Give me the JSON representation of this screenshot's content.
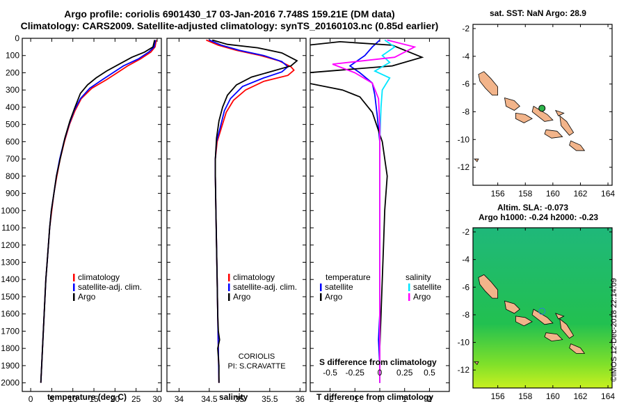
{
  "header": {
    "line1": "Argo profile: coriolis 6901430_17 03-Jan-2016 7.748S 159.21E (DM data)",
    "line2": "Climatology: CARS2009. Satellite-adjusted climatology: synTS_20160103.nc (0.85d earlier)"
  },
  "stamp": "©IMOS 12-Dec-2018 22:14:09",
  "colors": {
    "climatology": "#ff0000",
    "satellite": "#0000ff",
    "argo": "#000000",
    "sat_salinity": "#00e5ff",
    "clim_salinity": "#ff00ff"
  },
  "chart_data": [
    {
      "type": "line",
      "id": "temperature",
      "xlabel": "temperature (deg C)",
      "ylabel": "",
      "xlim": [
        -2,
        31
      ],
      "ylim": [
        2050,
        0
      ],
      "xticks": [
        0,
        5,
        10,
        15,
        20,
        25,
        30
      ],
      "yticks": [
        0,
        100,
        200,
        300,
        400,
        500,
        600,
        700,
        800,
        900,
        1000,
        1100,
        1200,
        1300,
        1400,
        1500,
        1600,
        1700,
        1800,
        1900,
        2000
      ],
      "legend": [
        "climatology",
        "satellite-adj. clim.",
        "Argo"
      ],
      "series": [
        {
          "name": "climatology",
          "color": "#ff0000",
          "points": [
            [
              29.8,
              10
            ],
            [
              29.5,
              50
            ],
            [
              28.5,
              80
            ],
            [
              26,
              120
            ],
            [
              23,
              160
            ],
            [
              20.5,
              200
            ],
            [
              18,
              240
            ],
            [
              14.5,
              290
            ],
            [
              12,
              350
            ],
            [
              10.5,
              420
            ],
            [
              9.2,
              500
            ],
            [
              8,
              600
            ],
            [
              7,
              700
            ],
            [
              6.2,
              800
            ],
            [
              5.5,
              900
            ],
            [
              5,
              1000
            ],
            [
              4.5,
              1100
            ],
            [
              4.2,
              1200
            ],
            [
              3.9,
              1300
            ],
            [
              3.6,
              1400
            ],
            [
              3.4,
              1500
            ],
            [
              3.2,
              1600
            ],
            [
              3,
              1700
            ],
            [
              2.8,
              1800
            ],
            [
              2.6,
              1900
            ],
            [
              2.4,
              2000
            ]
          ]
        },
        {
          "name": "satellite-adj. clim.",
          "color": "#0000ff",
          "points": [
            [
              29.6,
              10
            ],
            [
              29.3,
              50
            ],
            [
              28,
              80
            ],
            [
              25.5,
              120
            ],
            [
              22,
              160
            ],
            [
              19.5,
              200
            ],
            [
              17,
              240
            ],
            [
              14,
              290
            ],
            [
              11.8,
              350
            ],
            [
              10.3,
              420
            ],
            [
              9.1,
              500
            ],
            [
              7.9,
              600
            ],
            [
              6.9,
              700
            ],
            [
              6.1,
              800
            ],
            [
              5.5,
              900
            ],
            [
              4.9,
              1000
            ],
            [
              4.5,
              1100
            ],
            [
              4.2,
              1200
            ],
            [
              3.9,
              1300
            ],
            [
              3.6,
              1400
            ],
            [
              3.4,
              1500
            ],
            [
              3.2,
              1600
            ],
            [
              3,
              1700
            ],
            [
              2.8,
              1800
            ],
            [
              2.6,
              1900
            ],
            [
              2.4,
              2000
            ]
          ]
        },
        {
          "name": "Argo",
          "color": "#000000",
          "points": [
            [
              29.4,
              10
            ],
            [
              29,
              50
            ],
            [
              27,
              80
            ],
            [
              24,
              110
            ],
            [
              21,
              150
            ],
            [
              18,
              190
            ],
            [
              15.5,
              230
            ],
            [
              13.5,
              270
            ],
            [
              11.8,
              320
            ],
            [
              10.5,
              400
            ],
            [
              9.3,
              480
            ],
            [
              8.1,
              580
            ],
            [
              7,
              700
            ],
            [
              6.1,
              800
            ],
            [
              5.5,
              900
            ],
            [
              4.9,
              1000
            ],
            [
              4.5,
              1100
            ],
            [
              4.2,
              1200
            ],
            [
              3.9,
              1300
            ],
            [
              3.6,
              1400
            ],
            [
              3.4,
              1500
            ],
            [
              3.2,
              1600
            ],
            [
              3,
              1700
            ],
            [
              2.8,
              1800
            ],
            [
              2.6,
              1900
            ],
            [
              2.4,
              2000
            ]
          ]
        }
      ]
    },
    {
      "type": "line",
      "id": "salinity",
      "xlabel": "salinity",
      "ylabel": "",
      "xlim": [
        33.8,
        36.1
      ],
      "ylim": [
        2050,
        0
      ],
      "xticks": [
        34,
        34.5,
        35,
        35.5,
        36
      ],
      "xticklabels": [
        "34",
        "34.5",
        "35",
        "35.5",
        "36"
      ],
      "legend": [
        "climatology",
        "satellite-adj. clim.",
        "Argo"
      ],
      "annotation": [
        "CORIOLIS",
        "PI: S.CRAVATTE"
      ],
      "series": [
        {
          "name": "climatology",
          "color": "#ff0000",
          "points": [
            [
              34.45,
              10
            ],
            [
              34.65,
              40
            ],
            [
              34.95,
              70
            ],
            [
              35.35,
              100
            ],
            [
              35.65,
              130
            ],
            [
              35.85,
              165
            ],
            [
              35.9,
              185
            ],
            [
              35.8,
              215
            ],
            [
              35.4,
              250
            ],
            [
              35.1,
              300
            ],
            [
              34.9,
              360
            ],
            [
              34.78,
              430
            ],
            [
              34.7,
              520
            ],
            [
              34.63,
              600
            ],
            [
              34.6,
              700
            ],
            [
              34.6,
              800
            ],
            [
              34.61,
              1000
            ],
            [
              34.62,
              1200
            ],
            [
              34.63,
              1400
            ],
            [
              34.64,
              1600
            ],
            [
              34.65,
              1800
            ],
            [
              34.66,
              2000
            ]
          ]
        },
        {
          "name": "satellite-adj. clim.",
          "color": "#0000ff",
          "points": [
            [
              34.5,
              10
            ],
            [
              34.7,
              40
            ],
            [
              35.0,
              70
            ],
            [
              35.4,
              100
            ],
            [
              35.7,
              135
            ],
            [
              35.8,
              165
            ],
            [
              35.7,
              195
            ],
            [
              35.4,
              230
            ],
            [
              35.05,
              280
            ],
            [
              34.85,
              350
            ],
            [
              34.75,
              420
            ],
            [
              34.68,
              520
            ],
            [
              34.62,
              600
            ],
            [
              34.6,
              700
            ],
            [
              34.6,
              800
            ],
            [
              34.61,
              1000
            ],
            [
              34.62,
              1200
            ],
            [
              34.63,
              1400
            ],
            [
              34.64,
              1600
            ],
            [
              34.65,
              1800
            ],
            [
              34.66,
              2000
            ]
          ]
        },
        {
          "name": "Argo",
          "color": "#000000",
          "points": [
            [
              34.55,
              10
            ],
            [
              34.8,
              35
            ],
            [
              35.3,
              55
            ],
            [
              35.7,
              85
            ],
            [
              35.95,
              130
            ],
            [
              35.85,
              160
            ],
            [
              35.55,
              190
            ],
            [
              35.2,
              225
            ],
            [
              34.95,
              270
            ],
            [
              34.8,
              330
            ],
            [
              34.72,
              400
            ],
            [
              34.66,
              480
            ],
            [
              34.62,
              580
            ],
            [
              34.6,
              700
            ],
            [
              34.6,
              800
            ],
            [
              34.61,
              1000
            ],
            [
              34.62,
              1200
            ],
            [
              34.63,
              1400
            ],
            [
              34.64,
              1600
            ],
            [
              34.65,
              1700
            ],
            [
              34.67,
              1750
            ],
            [
              34.64,
              1800
            ],
            [
              34.66,
              1900
            ],
            [
              34.66,
              2000
            ]
          ]
        }
      ]
    },
    {
      "type": "line",
      "id": "difference",
      "xlabel": "T difference from climatology",
      "xlabel2": "S difference from climatology",
      "ylabel": "",
      "xlim": [
        -2.8,
        2.8
      ],
      "ylim": [
        2050,
        0
      ],
      "xticks": [
        -2,
        -1,
        0,
        1,
        2
      ],
      "xticks2": [
        -2,
        -1,
        0,
        1,
        2
      ],
      "xticklabels2": [
        "-0.5",
        "-0.25",
        "0",
        "0.25",
        "0.5"
      ],
      "legend_left_title": "temperature",
      "legend_right_title": "salinity",
      "legend": [
        "satellite",
        "Argo",
        "satellite",
        "Argo"
      ],
      "series": [
        {
          "name": "satellite",
          "color": "#0000ff",
          "points": [
            [
              0,
              10
            ],
            [
              -0.3,
              50
            ],
            [
              -0.6,
              100
            ],
            [
              -1.2,
              160
            ],
            [
              -0.8,
              200
            ],
            [
              -0.3,
              260
            ],
            [
              -0.2,
              330
            ],
            [
              -0.1,
              450
            ],
            [
              0,
              600
            ],
            [
              0,
              800
            ],
            [
              0,
              1000
            ],
            [
              0,
              1200
            ],
            [
              0,
              1400
            ],
            [
              0,
              1600
            ],
            [
              -0.05,
              1750
            ],
            [
              0,
              1900
            ],
            [
              0,
              2000
            ]
          ]
        },
        {
          "name": "Argo",
          "color": "#000000",
          "points": [
            [
              -2.9,
              40
            ],
            [
              -1.6,
              20
            ],
            [
              0.5,
              40
            ],
            [
              1.7,
              110
            ],
            [
              0.5,
              160
            ],
            [
              -2.9,
              200
            ],
            [
              -2.9,
              260
            ],
            [
              -1.5,
              300
            ],
            [
              -0.8,
              340
            ],
            [
              -0.3,
              430
            ],
            [
              0.1,
              600
            ],
            [
              0.3,
              800
            ],
            [
              0.2,
              1000
            ],
            [
              0.15,
              1200
            ],
            [
              0.1,
              1400
            ],
            [
              0.05,
              1600
            ],
            [
              0,
              1800
            ],
            [
              0,
              2000
            ]
          ]
        },
        {
          "name": "satellite",
          "color": "#00e5ff",
          "points": [
            [
              0.2,
              10
            ],
            [
              0.6,
              50
            ],
            [
              0.1,
              100
            ],
            [
              0.4,
              140
            ],
            [
              -0.2,
              190
            ],
            [
              0.4,
              230
            ],
            [
              0.1,
              300
            ],
            [
              0.05,
              400
            ],
            [
              0,
              600
            ],
            [
              0,
              800
            ],
            [
              0,
              1000
            ],
            [
              0,
              1200
            ],
            [
              0,
              1400
            ],
            [
              0,
              1600
            ],
            [
              0,
              1800
            ],
            [
              0,
              2000
            ]
          ]
        },
        {
          "name": "Argo",
          "color": "#ff00ff",
          "points": [
            [
              0.3,
              10
            ],
            [
              1.4,
              50
            ],
            [
              0.6,
              110
            ],
            [
              -1.9,
              150
            ],
            [
              -1.0,
              200
            ],
            [
              -0.3,
              260
            ],
            [
              -0.05,
              350
            ],
            [
              0,
              500
            ],
            [
              0,
              800
            ],
            [
              0,
              1000
            ],
            [
              0,
              1200
            ],
            [
              0,
              1400
            ],
            [
              0,
              1600
            ],
            [
              0,
              1800
            ],
            [
              0,
              2000
            ]
          ]
        }
      ]
    },
    {
      "type": "scatter",
      "id": "sst-map",
      "title": "sat. SST: NaN Argo: 28.9",
      "xlim": [
        154.2,
        164.3
      ],
      "ylim": [
        -13.3,
        -1.7
      ],
      "xticks": [
        156,
        158,
        160,
        162,
        164
      ],
      "yticks": [
        -2,
        -4,
        -6,
        -8,
        -10,
        -12
      ],
      "points": [
        {
          "x": 159.21,
          "y": -7.748,
          "value": 28.9
        }
      ]
    },
    {
      "type": "heatmap",
      "id": "sla-map",
      "title1": "Altim. SLA: -0.073",
      "title2": "Argo h1000: -0.24 h2000: -0.23",
      "xlim": [
        154.2,
        164.3
      ],
      "ylim": [
        -13.3,
        -1.7
      ],
      "xticks": [
        156,
        158,
        160,
        162,
        164
      ],
      "yticks": [
        -2,
        -4,
        -6,
        -8,
        -10,
        -12
      ],
      "points": [
        {
          "x": 159.21,
          "y": -7.748
        }
      ]
    }
  ],
  "legend_main": {
    "climatology": "climatology",
    "satellite": "satellite-adj. clim.",
    "argo": "Argo"
  },
  "legend_diff": {
    "temperature": "temperature",
    "salinity": "salinity",
    "satellite": "satellite",
    "argo": "Argo"
  },
  "annotation": {
    "line1": "CORIOLIS",
    "line2": "PI: S.CRAVATTE"
  },
  "axis_labels": {
    "temperature": "temperature (deg C)",
    "salinity": "salinity",
    "tdiff": "T difference from climatology",
    "sdiff": "S difference from climatology"
  },
  "maps": {
    "sst_title": "sat. SST: NaN Argo: 28.9",
    "sla_title1": "Altim. SLA: -0.073",
    "sla_title2": "Argo h1000: -0.24 h2000: -0.23"
  }
}
